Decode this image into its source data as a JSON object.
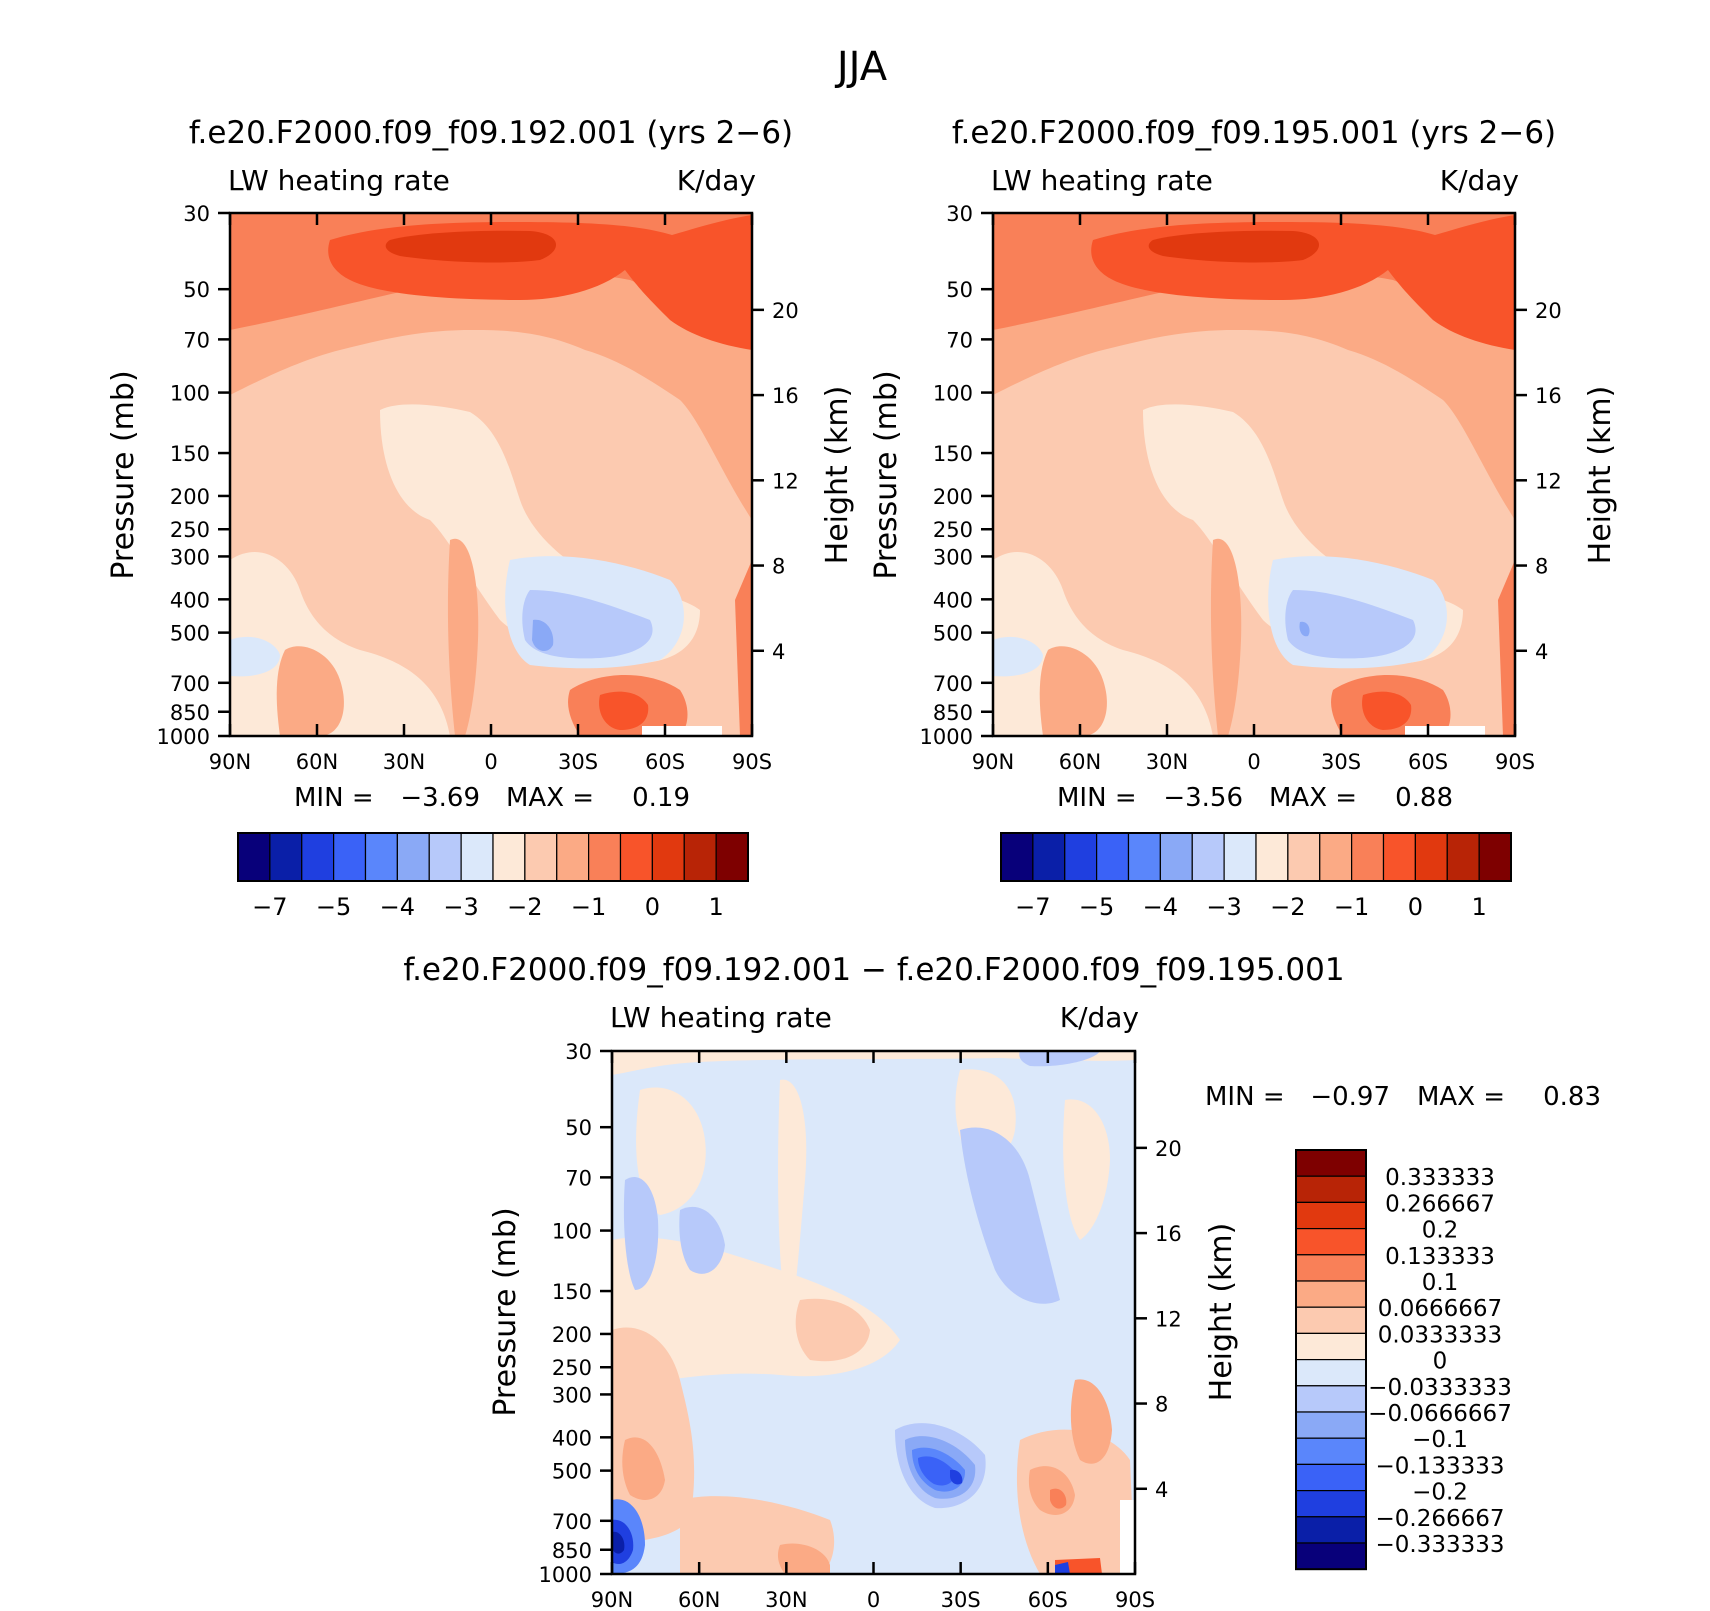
{
  "figure": {
    "title": "JJA"
  },
  "colors": {
    "model_palette": [
      "#08007a",
      "#0a1fa8",
      "#1f3fe0",
      "#3a62f7",
      "#5a86fb",
      "#8aa9f6",
      "#b7c9fa",
      "#dbe8fa",
      "#fde9d8",
      "#fccab0",
      "#fbaa85",
      "#f98058",
      "#f8542a",
      "#e1390f",
      "#b82406",
      "#7e0000"
    ],
    "diff_palette": [
      "#08007a",
      "#0a1fa8",
      "#1f3fe0",
      "#3a62f7",
      "#5a86fb",
      "#8aa9f6",
      "#b7c9fa",
      "#dbe8fa",
      "#fde9d8",
      "#fccab0",
      "#fbaa85",
      "#f98058",
      "#f8542a",
      "#e1390f",
      "#b82406",
      "#7e0000"
    ]
  },
  "chart_data": [
    {
      "type": "heatmap",
      "panel": "left",
      "title": "f.e20.F2000.f09_f09.192.001 (yrs 2−6)",
      "variable": "LW heating rate",
      "units": "K/day",
      "xlabel": "",
      "ylabel": "Pressure (mb)",
      "y2label": "Height (km)",
      "x_ticks": [
        "90N",
        "60N",
        "30N",
        "0",
        "30S",
        "60S",
        "90S"
      ],
      "y_ticks": [
        "30",
        "50",
        "70",
        "100",
        "150",
        "200",
        "250",
        "300",
        "400",
        "500",
        "700",
        "850",
        "1000"
      ],
      "y2_ticks": [
        "20",
        "16",
        "12",
        "8",
        "4"
      ],
      "min_label": "MIN =",
      "min": "−3.69",
      "max_label": "MAX =",
      "max": "0.19",
      "colorbar_labels": [
        "−7",
        "−5",
        "−4",
        "−3",
        "−2",
        "−1",
        "0",
        "1"
      ]
    },
    {
      "type": "heatmap",
      "panel": "right",
      "title": "f.e20.F2000.f09_f09.195.001 (yrs 2−6)",
      "variable": "LW heating rate",
      "units": "K/day",
      "xlabel": "",
      "ylabel": "Pressure (mb)",
      "y2label": "Height (km)",
      "x_ticks": [
        "90N",
        "60N",
        "30N",
        "0",
        "30S",
        "60S",
        "90S"
      ],
      "y_ticks": [
        "30",
        "50",
        "70",
        "100",
        "150",
        "200",
        "250",
        "300",
        "400",
        "500",
        "700",
        "850",
        "1000"
      ],
      "y2_ticks": [
        "20",
        "16",
        "12",
        "8",
        "4"
      ],
      "min_label": "MIN =",
      "min": "−3.56",
      "max_label": "MAX =",
      "max": "0.88",
      "colorbar_labels": [
        "−7",
        "−5",
        "−4",
        "−3",
        "−2",
        "−1",
        "0",
        "1"
      ]
    },
    {
      "type": "heatmap",
      "panel": "difference",
      "title": "f.e20.F2000.f09_f09.192.001 − f.e20.F2000.f09_f09.195.001",
      "variable": "LW heating rate",
      "units": "K/day",
      "xlabel": "",
      "ylabel": "Pressure (mb)",
      "y2label": "Height (km)",
      "x_ticks": [
        "90N",
        "60N",
        "30N",
        "0",
        "30S",
        "60S",
        "90S"
      ],
      "y_ticks": [
        "30",
        "50",
        "70",
        "100",
        "150",
        "200",
        "250",
        "300",
        "400",
        "500",
        "700",
        "850",
        "1000"
      ],
      "y2_ticks": [
        "20",
        "16",
        "12",
        "8",
        "4"
      ],
      "min_label": "MIN =",
      "min": "−0.97",
      "max_label": "MAX =",
      "max": "0.83",
      "colorbar_labels": [
        "0.333333",
        "0.266667",
        "0.2",
        "0.133333",
        "0.1",
        "0.0666667",
        "0.0333333",
        "0",
        "−0.0333333",
        "−0.0666667",
        "−0.1",
        "−0.133333",
        "−0.2",
        "−0.266667",
        "−0.333333"
      ]
    }
  ]
}
